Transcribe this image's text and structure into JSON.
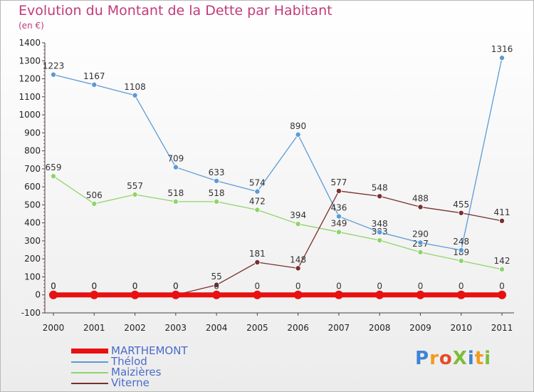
{
  "title": "Evolution du Montant de la Dette par Habitant",
  "subtitle": "(en €)",
  "logo": {
    "text": "ProXiti",
    "colors": [
      "#3e84d4",
      "#f39a1e",
      "#e64b2c",
      "#7cbd3a",
      "#3e84d4",
      "#f39a1e",
      "#7cbd3a"
    ]
  },
  "chart_data": {
    "type": "line",
    "x": [
      "2000",
      "2001",
      "2002",
      "2003",
      "2004",
      "2005",
      "2006",
      "2007",
      "2008",
      "2009",
      "2010",
      "2011"
    ],
    "ylim": [
      -100,
      1400
    ],
    "yticks": [
      -100,
      0,
      100,
      200,
      300,
      400,
      500,
      600,
      700,
      800,
      900,
      1000,
      1100,
      1200,
      1300,
      1400
    ],
    "grid": false,
    "legend_position": "bottom-left",
    "series": [
      {
        "name": "MARTHEMONT",
        "color": "#e81010",
        "values": [
          0,
          0,
          0,
          0,
          0,
          0,
          0,
          0,
          0,
          0,
          0,
          0
        ]
      },
      {
        "name": "Thélod",
        "color": "#5b9bd5",
        "values": [
          1223,
          1167,
          1108,
          709,
          633,
          574,
          890,
          436,
          348,
          290,
          248,
          1316
        ]
      },
      {
        "name": "Maizières",
        "color": "#8fd46a",
        "values": [
          659,
          506,
          557,
          518,
          518,
          472,
          394,
          349,
          303,
          237,
          189,
          142
        ]
      },
      {
        "name": "Viterne",
        "color": "#7a2e2e",
        "values": [
          0,
          0,
          0,
          0,
          55,
          181,
          148,
          577,
          548,
          488,
          455,
          411
        ]
      }
    ]
  }
}
